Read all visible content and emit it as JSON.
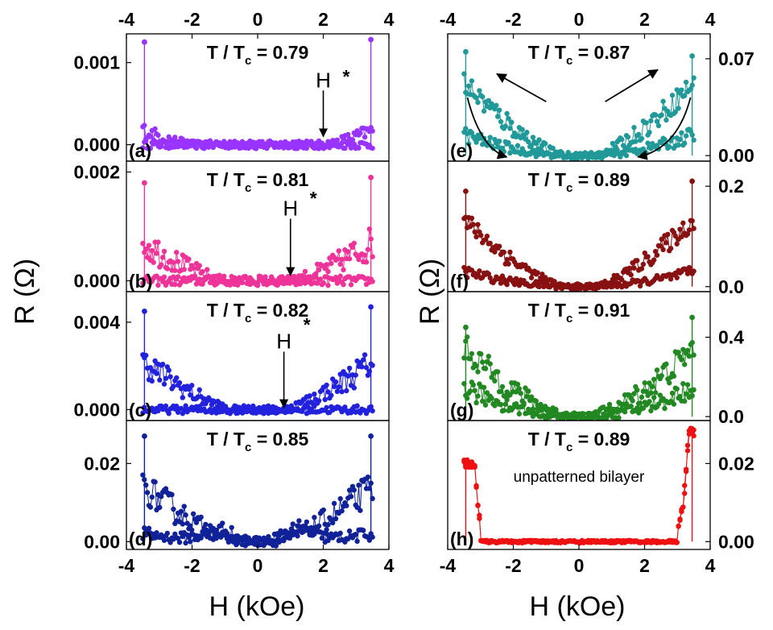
{
  "chart_data": {
    "type": "scatter",
    "x_axis": {
      "label": "H (kOe)",
      "ticks": [
        "-4",
        "-2",
        "0",
        "2",
        "4"
      ],
      "range": [
        -4,
        4
      ]
    },
    "y_axis_label": "R (Ω)",
    "panels": [
      {
        "id": "a",
        "label": "(a)",
        "title_main": "T / T",
        "title_sub": "c",
        "title_value": " = 0.79",
        "color": "#9933ff",
        "ylim": [
          -0.0002,
          0.00135
        ],
        "yticks": [
          "0.000",
          "0.001"
        ],
        "ytick_values": [
          0,
          0.001
        ],
        "hsw": 2.0,
        "a": 0.00095,
        "m": 0.0,
        "bump": 0.0,
        "peak_left": 0.00125,
        "peak_right": 0.00128,
        "noise": 0.00012,
        "annotations": {
          "H_arrow_x": 2.0,
          "H_arrow_y": 0.0007,
          "H_arrow_tip": 0.0001,
          "star_x": 2.7,
          "star_y": 0.00075
        }
      },
      {
        "id": "b",
        "label": "(b)",
        "title_main": "T / T",
        "title_sub": "c",
        "title_value": " = 0.81",
        "color": "#ee3399",
        "ylim": [
          -0.0002,
          0.0022
        ],
        "yticks": [
          "0.000",
          "0.002"
        ],
        "ytick_values": [
          0,
          0.002
        ],
        "hsw": 1.0,
        "a": 0.0015,
        "m": 0.0,
        "bump": 0.0,
        "peak_left": 0.0018,
        "peak_right": 0.0019,
        "noise": 0.00022,
        "annotations": {
          "H_arrow_x": 1.0,
          "H_arrow_y": 0.0012,
          "H_arrow_tip": 0.0001,
          "star_x": 1.7,
          "star_y": 0.0014
        }
      },
      {
        "id": "c",
        "label": "(c)",
        "title_main": "T / T",
        "title_sub": "c",
        "title_value": " = 0.82",
        "color": "#2222dd",
        "ylim": [
          -0.0005,
          0.0054
        ],
        "yticks": [
          "0.000",
          "0.004"
        ],
        "ytick_values": [
          0,
          0.004
        ],
        "hsw": 0.8,
        "a": 0.004,
        "m": 0.0,
        "bump": 0.0,
        "peak_left": 0.0045,
        "peak_right": 0.0047,
        "noise": 0.00045,
        "annotations": {
          "H_arrow_x": 0.8,
          "H_arrow_y": 0.0028,
          "H_arrow_tip": 0.0001,
          "star_x": 1.5,
          "star_y": 0.0036
        }
      },
      {
        "id": "d",
        "label": "(d)",
        "title_main": "T / T",
        "title_sub": "c",
        "title_value": " = 0.85",
        "color": "#112299",
        "ylim": [
          -0.002,
          0.031
        ],
        "yticks": [
          "0.00",
          "0.02"
        ],
        "ytick_values": [
          0,
          0.02
        ],
        "hsw": 0.6,
        "a": 0.019,
        "m": 0.002,
        "bump": 0.003,
        "peak_left": 0.027,
        "peak_right": 0.027,
        "noise": 0.0028,
        "annotations": null
      },
      {
        "id": "e",
        "label": "(e)",
        "title_main": "T / T",
        "title_sub": "c",
        "title_value": " = 0.87",
        "color": "#229999",
        "ylim": [
          -0.004,
          0.088
        ],
        "yticks": [
          "0.00",
          "0.07"
        ],
        "ytick_values": [
          0,
          0.07
        ],
        "hsw": 0.5,
        "a": 0.055,
        "m": 0.015,
        "bump": 0.0,
        "peak_left": 0.075,
        "peak_right": 0.072,
        "noise": 0.006,
        "annotations": {
          "sweep_arrows": true
        }
      },
      {
        "id": "f",
        "label": "(f)",
        "title_main": "T / T",
        "title_sub": "c",
        "title_value": " = 0.89",
        "color": "#881111",
        "ylim": [
          -0.01,
          0.25
        ],
        "yticks": [
          "0.0",
          "0.2"
        ],
        "ytick_values": [
          0,
          0.2
        ],
        "hsw": 0.5,
        "a": 0.15,
        "m": 0.03,
        "bump": 0.0,
        "peak_left": 0.19,
        "peak_right": 0.21,
        "noise": 0.014,
        "annotations": null
      },
      {
        "id": "g",
        "label": "(g)",
        "title_main": "T / T",
        "title_sub": "c",
        "title_value": " = 0.91",
        "color": "#228822",
        "ylim": [
          -0.02,
          0.63
        ],
        "yticks": [
          "0.0",
          "0.4"
        ],
        "ytick_values": [
          0,
          0.4
        ],
        "hsw": 0.3,
        "a": 0.25,
        "m": 0.15,
        "bump": 0.0,
        "peak_left": 0.45,
        "peak_right": 0.5,
        "noise": 0.05,
        "annotations": null
      },
      {
        "id": "h",
        "label": "(h)",
        "title_main": "T / T",
        "title_sub": "c",
        "title_value": " = 0.89",
        "color": "#ee1111",
        "ylim": [
          -0.002,
          0.031
        ],
        "yticks": [
          "0.00",
          "0.02"
        ],
        "ytick_values": [
          0,
          0.02
        ],
        "hsw": 0.0,
        "a": 0.0,
        "m": 0.0,
        "bump": 0.0,
        "peak_left": 0.02,
        "peak_right": 0.028,
        "noise": 0.0008,
        "note": "unpatterned bilayer",
        "sharp_edges": true,
        "annotations": null
      }
    ]
  }
}
